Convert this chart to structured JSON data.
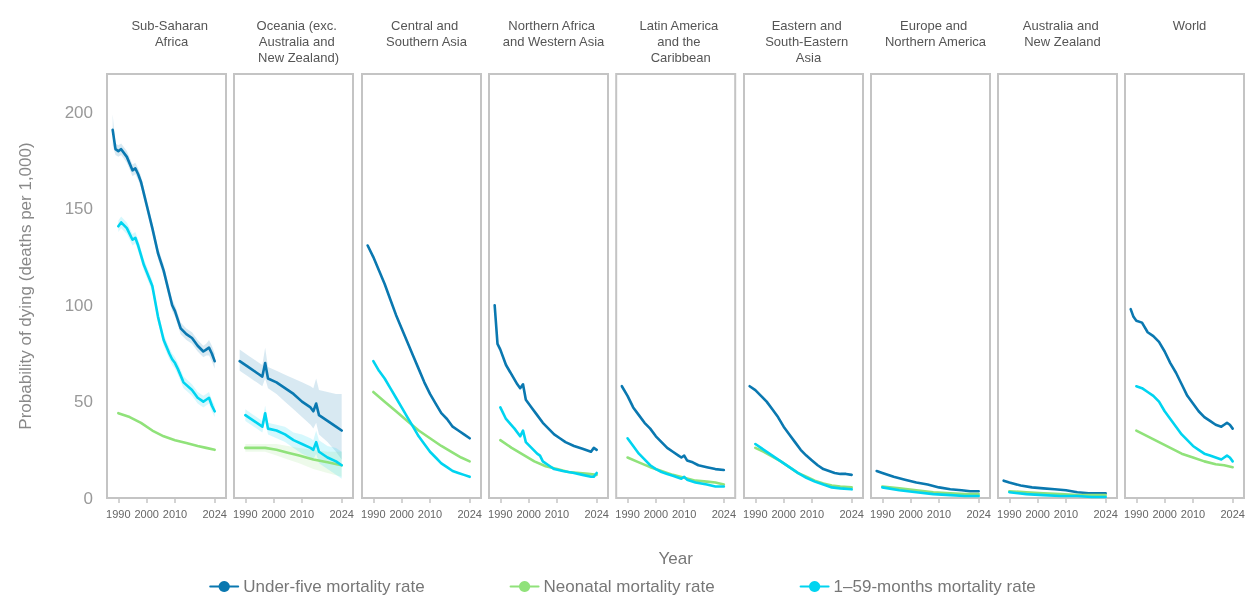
{
  "chart_data": [
    {
      "type": "line",
      "title": "Sub-Saharan Africa",
      "ylabel": "Probability of dying (deaths per 1,000)",
      "xlim": [
        1986,
        2028
      ],
      "xticks": [
        1990,
        2000,
        2010,
        2024
      ],
      "ylim": [
        0,
        220
      ],
      "yticks": [
        0,
        50,
        100,
        150,
        200
      ],
      "series": [
        {
          "color": "#0a78b0",
          "x": [
            1988,
            1989,
            1990,
            1991,
            1993,
            1995,
            1996,
            1997,
            1998,
            2000,
            2002,
            2004,
            2006,
            2008,
            2009,
            2010,
            2012,
            2014,
            2016,
            2018,
            2020,
            2021,
            2022,
            2023,
            2024
          ],
          "values": [
            191,
            181,
            180,
            181,
            177,
            170,
            171,
            168,
            164,
            152,
            140,
            127,
            118,
            106,
            100,
            97,
            88,
            85,
            83,
            79,
            76,
            77,
            78,
            75,
            71
          ],
          "lower": [
            183,
            178,
            177,
            178,
            174,
            167,
            168,
            165,
            161,
            149,
            137,
            124,
            115,
            103,
            97,
            94,
            85,
            82,
            80,
            76,
            73,
            74,
            74,
            71,
            67
          ],
          "upper": [
            199,
            184,
            183,
            184,
            180,
            173,
            174,
            171,
            167,
            155,
            143,
            130,
            121,
            109,
            103,
            100,
            91,
            88,
            86,
            82,
            79,
            80,
            82,
            79,
            75
          ]
        },
        {
          "color": "#90e27a",
          "x": [
            1990,
            1994,
            1998,
            2002,
            2006,
            2010,
            2014,
            2018,
            2021,
            2024
          ],
          "values": [
            44,
            42,
            39,
            35,
            32,
            30,
            28.5,
            27,
            26,
            25
          ]
        },
        {
          "color": "#00d4f0",
          "x": [
            1990,
            1991,
            1993,
            1995,
            1996,
            1997,
            1999,
            2002,
            2004,
            2006,
            2008,
            2009,
            2010,
            2011,
            2013,
            2016,
            2018,
            2020,
            2021,
            2022,
            2023,
            2024
          ],
          "values": [
            141,
            143,
            140,
            134,
            135,
            131,
            121,
            110,
            94,
            82,
            75,
            72,
            70,
            67,
            60,
            56,
            52,
            50,
            51,
            52,
            48,
            45
          ],
          "lower": [
            138,
            140,
            137,
            131,
            132,
            128,
            118,
            107,
            91,
            79,
            72,
            69,
            67,
            64,
            57,
            53,
            49,
            47,
            48,
            49,
            45,
            42
          ],
          "upper": [
            144,
            146,
            143,
            137,
            138,
            134,
            124,
            113,
            97,
            85,
            78,
            75,
            73,
            70,
            63,
            59,
            55,
            53,
            54,
            55,
            51,
            48
          ]
        }
      ]
    },
    {
      "type": "line",
      "title": "Oceania (exc. Australia and New Zealand)",
      "xlim": [
        1986,
        2028
      ],
      "xticks": [
        1990,
        2000,
        2010,
        2024
      ],
      "ylim": [
        0,
        220
      ],
      "yticks": [
        0,
        50,
        100,
        150,
        200
      ],
      "tick_labels": "x",
      "series": [
        {
          "color": "#0a78b0",
          "x": [
            1988,
            1991,
            1994,
            1996,
            1997,
            1998,
            2001,
            2004,
            2007,
            2010,
            2013,
            2014,
            2015,
            2016,
            2019,
            2022,
            2024
          ],
          "values": [
            71,
            68,
            65,
            63,
            70,
            62,
            60,
            57,
            54,
            50,
            47,
            45,
            49,
            43,
            40,
            37,
            35
          ],
          "lower": [
            66,
            63,
            60,
            58,
            62,
            57,
            54,
            50,
            46,
            42,
            38,
            36,
            39,
            33,
            29,
            24,
            20
          ],
          "upper": [
            77,
            74,
            71,
            69,
            78,
            68,
            66,
            64,
            62,
            60,
            58,
            57,
            62,
            56,
            55,
            54,
            54
          ]
        },
        {
          "color": "#90e27a",
          "x": [
            1990,
            1994,
            1997,
            2001,
            2005,
            2009,
            2014,
            2019,
            2024
          ],
          "values": [
            26,
            26,
            26,
            25,
            23.5,
            22,
            20,
            18.5,
            17
          ],
          "lower": [
            24,
            24,
            24,
            22,
            20,
            18,
            15,
            13,
            11
          ],
          "upper": [
            28,
            28,
            28,
            28,
            27,
            26,
            25,
            24,
            24
          ]
        },
        {
          "color": "#00d4f0",
          "x": [
            1990,
            1993,
            1996,
            1997,
            1998,
            2001,
            2004,
            2007,
            2010,
            2013,
            2014,
            2015,
            2016,
            2019,
            2022,
            2024
          ],
          "values": [
            43,
            40,
            37,
            44,
            36,
            35,
            33,
            30,
            28,
            26,
            25,
            29,
            24,
            21,
            19,
            17
          ],
          "lower": [
            40,
            37,
            34,
            40,
            33,
            31,
            29,
            26,
            23,
            21,
            20,
            23,
            18,
            15,
            12,
            10
          ],
          "upper": [
            46,
            43,
            40,
            48,
            39,
            38,
            37,
            34,
            33,
            31,
            30,
            35,
            30,
            27,
            26,
            24
          ]
        }
      ]
    },
    {
      "type": "line",
      "title": "Central and Southern Asia",
      "xlim": [
        1986,
        2028
      ],
      "xticks": [
        1990,
        2000,
        2010,
        2024
      ],
      "ylim": [
        0,
        220
      ],
      "yticks": [
        0,
        50,
        100,
        150,
        200
      ],
      "tick_labels": "x",
      "series": [
        {
          "color": "#0a78b0",
          "x": [
            1988,
            1990,
            1992,
            1994,
            1996,
            1998,
            2000,
            2002,
            2004,
            2006,
            2008,
            2010,
            2012,
            2014,
            2016,
            2018,
            2020,
            2022,
            2024
          ],
          "values": [
            131,
            125,
            118,
            111,
            103,
            95,
            88,
            81,
            74,
            67,
            60,
            54,
            49,
            44,
            41,
            37,
            35,
            33,
            31
          ]
        },
        {
          "color": "#90e27a",
          "x": [
            1990,
            1994,
            1998,
            2002,
            2006,
            2010,
            2014,
            2018,
            2021,
            2024
          ],
          "values": [
            55,
            50,
            45,
            40,
            35,
            31,
            27,
            23.5,
            21,
            19
          ]
        },
        {
          "color": "#00d4f0",
          "x": [
            1990,
            1992,
            1994,
            1996,
            1998,
            2000,
            2002,
            2004,
            2006,
            2008,
            2010,
            2012,
            2014,
            2016,
            2018,
            2020,
            2022,
            2024
          ],
          "values": [
            71,
            66,
            62,
            57,
            52,
            47,
            42,
            37,
            32,
            28,
            24,
            21,
            18,
            16,
            14,
            13,
            12,
            11
          ]
        }
      ]
    },
    {
      "type": "line",
      "title": "Northern Africa and Western Asia",
      "xlim": [
        1986,
        2028
      ],
      "xticks": [
        1990,
        2000,
        2010,
        2024
      ],
      "ylim": [
        0,
        220
      ],
      "yticks": [
        0,
        50,
        100,
        150,
        200
      ],
      "tick_labels": "x",
      "series": [
        {
          "color": "#0a78b0",
          "x": [
            1988,
            1989,
            1990,
            1992,
            1994,
            1996,
            1997,
            1998,
            1999,
            2001,
            2003,
            2005,
            2007,
            2009,
            2011,
            2013,
            2016,
            2019,
            2022,
            2023,
            2024
          ],
          "values": [
            100,
            80,
            77,
            69,
            64,
            59,
            57,
            59,
            51,
            47,
            43,
            39,
            36,
            33,
            31,
            29,
            27,
            25.5,
            24,
            26,
            25
          ]
        },
        {
          "color": "#90e27a",
          "x": [
            1990,
            1994,
            1998,
            2002,
            2006,
            2010,
            2014,
            2018,
            2021,
            2024
          ],
          "values": [
            30,
            26,
            22.5,
            19,
            16.5,
            15,
            13.5,
            13,
            12.5,
            12
          ]
        },
        {
          "color": "#00d4f0",
          "x": [
            1990,
            1992,
            1995,
            1997,
            1998,
            1999,
            2001,
            2003,
            2004,
            2005,
            2007,
            2009,
            2012,
            2016,
            2019,
            2022,
            2023,
            2024
          ],
          "values": [
            47,
            41,
            36,
            32,
            35,
            29,
            26,
            23,
            22,
            19,
            17,
            15,
            14,
            13,
            12,
            11,
            11,
            13
          ]
        }
      ]
    },
    {
      "type": "line",
      "title": "Latin America and the Caribbean",
      "xlabel": "Year",
      "legend": "bottom",
      "xlim": [
        1986,
        2028
      ],
      "xticks": [
        1990,
        2000,
        2010,
        2024
      ],
      "ylim": [
        0,
        220
      ],
      "yticks": [
        0,
        50,
        100,
        150,
        200
      ],
      "tick_labels": "x",
      "series": [
        {
          "name": "Under-five mortality rate",
          "color": "#0a78b0",
          "x": [
            1988,
            1990,
            1992,
            1994,
            1996,
            1998,
            2000,
            2002,
            2004,
            2006,
            2008,
            2009,
            2010,
            2011,
            2013,
            2015,
            2018,
            2021,
            2024
          ],
          "values": [
            58,
            53,
            47,
            43,
            39,
            36,
            32,
            29,
            26,
            24,
            22,
            21,
            22,
            19.5,
            18.5,
            17,
            16,
            15,
            14.5
          ]
        },
        {
          "name": "Neonatal mortality rate",
          "color": "#90e27a",
          "x": [
            1990,
            1994,
            1998,
            2002,
            2006,
            2010,
            2014,
            2018,
            2021,
            2024
          ],
          "values": [
            21,
            18.5,
            16,
            14,
            12,
            10.5,
            9,
            8.5,
            8,
            7
          ]
        },
        {
          "name": "1–59-months mortality rate",
          "color": "#00d4f0",
          "x": [
            1990,
            1992,
            1994,
            1996,
            1998,
            2000,
            2002,
            2004,
            2006,
            2008,
            2009,
            2010,
            2011,
            2014,
            2018,
            2021,
            2024
          ],
          "values": [
            31,
            27,
            23,
            20,
            17,
            15,
            13.5,
            12.5,
            11.5,
            10.5,
            10,
            11,
            9.5,
            8,
            7,
            6,
            6
          ]
        }
      ]
    },
    {
      "type": "line",
      "title": "Eastern and South-Eastern Asia",
      "xlim": [
        1986,
        2028
      ],
      "xticks": [
        1990,
        2000,
        2010,
        2024
      ],
      "ylim": [
        0,
        220
      ],
      "yticks": [
        0,
        50,
        100,
        150,
        200
      ],
      "tick_labels": "x",
      "series": [
        {
          "color": "#0a78b0",
          "x": [
            1988,
            1990,
            1992,
            1994,
            1996,
            1998,
            2000,
            2002,
            2004,
            2006,
            2008,
            2010,
            2012,
            2014,
            2016,
            2018,
            2020,
            2022,
            2024
          ],
          "values": [
            58,
            56,
            53,
            50,
            46,
            42,
            37,
            33,
            29,
            25,
            22,
            19.5,
            17,
            15,
            14,
            13,
            12.5,
            12.5,
            12
          ]
        },
        {
          "color": "#90e27a",
          "x": [
            1990,
            1993,
            1996,
            1999,
            2002,
            2005,
            2008,
            2011,
            2014,
            2017,
            2020,
            2024
          ],
          "values": [
            26,
            24,
            21.5,
            19,
            16,
            13,
            11,
            9,
            7.5,
            6.5,
            6,
            5.5
          ]
        },
        {
          "color": "#00d4f0",
          "x": [
            1990,
            1993,
            1996,
            1999,
            2002,
            2005,
            2008,
            2011,
            2014,
            2017,
            2020,
            2024
          ],
          "values": [
            28,
            25,
            22,
            19,
            16,
            13,
            10.5,
            8.5,
            7,
            5.5,
            5,
            4.5
          ]
        }
      ]
    },
    {
      "type": "line",
      "title": "Europe and Northern America",
      "xlim": [
        1986,
        2028
      ],
      "xticks": [
        1990,
        2000,
        2010,
        2024
      ],
      "ylim": [
        0,
        220
      ],
      "yticks": [
        0,
        50,
        100,
        150,
        200
      ],
      "tick_labels": "x",
      "series": [
        {
          "color": "#0a78b0",
          "x": [
            1988,
            1990,
            1994,
            1998,
            2002,
            2006,
            2010,
            2014,
            2018,
            2021,
            2024
          ],
          "values": [
            14,
            13,
            11,
            9.5,
            8,
            7,
            5.5,
            4.5,
            4,
            3.5,
            3.5
          ]
        },
        {
          "color": "#90e27a",
          "x": [
            1990,
            1996,
            2002,
            2008,
            2014,
            2019,
            2024
          ],
          "values": [
            6,
            5,
            4,
            3,
            2.5,
            2,
            2
          ]
        },
        {
          "color": "#00d4f0",
          "x": [
            1990,
            1996,
            2002,
            2008,
            2014,
            2019,
            2024
          ],
          "values": [
            5.5,
            4,
            3,
            2,
            1.5,
            1,
            1
          ]
        }
      ]
    },
    {
      "type": "line",
      "title": "Australia and New Zealand",
      "xlim": [
        1986,
        2028
      ],
      "xticks": [
        1990,
        2000,
        2010,
        2024
      ],
      "ylim": [
        0,
        220
      ],
      "yticks": [
        0,
        50,
        100,
        150,
        200
      ],
      "tick_labels": "x",
      "series": [
        {
          "color": "#0a78b0",
          "x": [
            1988,
            1990,
            1994,
            1998,
            2002,
            2006,
            2010,
            2014,
            2018,
            2021,
            2024
          ],
          "values": [
            9,
            8,
            6.5,
            5.5,
            5,
            4.5,
            4,
            3,
            2.5,
            2.5,
            2.5
          ]
        },
        {
          "color": "#90e27a",
          "x": [
            1990,
            1996,
            2002,
            2008,
            2014,
            2019,
            2024
          ],
          "values": [
            3.5,
            3,
            2.5,
            2,
            1.5,
            1.5,
            1.5
          ]
        },
        {
          "color": "#00d4f0",
          "x": [
            1990,
            1996,
            2002,
            2008,
            2014,
            2019,
            2024
          ],
          "values": [
            3,
            2,
            1.5,
            1,
            1,
            0.5,
            0.5
          ]
        }
      ]
    },
    {
      "type": "line",
      "title": "World",
      "xlim": [
        1986,
        2028
      ],
      "xticks": [
        1990,
        2000,
        2010,
        2024
      ],
      "ylim": [
        0,
        220
      ],
      "yticks": [
        0,
        50,
        100,
        150,
        200
      ],
      "tick_labels": "x",
      "series": [
        {
          "color": "#0a78b0",
          "x": [
            1988,
            1989,
            1990,
            1992,
            1994,
            1996,
            1998,
            2000,
            2002,
            2004,
            2006,
            2008,
            2010,
            2012,
            2014,
            2016,
            2018,
            2020,
            2021,
            2022,
            2023,
            2024
          ],
          "values": [
            98,
            94,
            92,
            91,
            86,
            84,
            81,
            76,
            70,
            65,
            59,
            53,
            49,
            45,
            42,
            40,
            38,
            37,
            38,
            39,
            38,
            36
          ]
        },
        {
          "color": "#90e27a",
          "x": [
            1990,
            1994,
            1998,
            2002,
            2006,
            2010,
            2014,
            2018,
            2021,
            2024
          ],
          "values": [
            35,
            32,
            29,
            26,
            23,
            21,
            19,
            17.5,
            17,
            16
          ]
        },
        {
          "color": "#00d4f0",
          "x": [
            1990,
            1992,
            1994,
            1996,
            1998,
            2000,
            2002,
            2004,
            2006,
            2008,
            2010,
            2012,
            2014,
            2016,
            2018,
            2020,
            2021,
            2022,
            2023,
            2024
          ],
          "values": [
            58,
            57,
            55,
            53,
            50,
            45,
            41,
            37,
            33,
            30,
            27,
            25,
            23,
            22,
            21,
            20,
            21,
            22,
            21,
            19
          ]
        }
      ]
    }
  ]
}
